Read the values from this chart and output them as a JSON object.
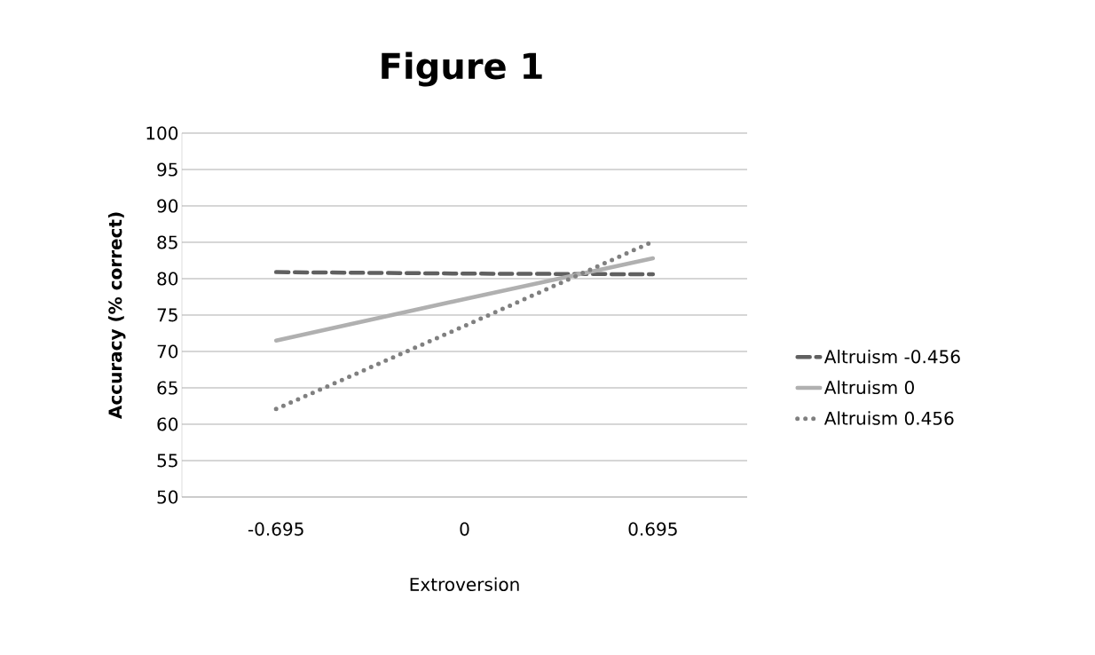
{
  "chart_data": {
    "type": "line",
    "title": "Figure 1",
    "xlabel": "Extroversion",
    "ylabel": "Accuracy (% correct)",
    "categories": [
      "-0.695",
      "0",
      "0.695"
    ],
    "series": [
      {
        "name": "Altruism -0.456",
        "color": "#606060",
        "line_style": "dashed",
        "values": [
          80.9,
          80.7,
          80.6
        ]
      },
      {
        "name": "Altruism 0",
        "color": "#b0b0b0",
        "line_style": "solid",
        "values": [
          71.5,
          77.2,
          82.8
        ]
      },
      {
        "name": "Altruism 0.456",
        "color": "#808080",
        "line_style": "dotted",
        "values": [
          62.1,
          73.5,
          85.1
        ]
      }
    ],
    "ylim": [
      50,
      100
    ],
    "yticks": [
      50,
      55,
      60,
      65,
      70,
      75,
      80,
      85,
      90,
      95,
      100
    ],
    "grid": "y",
    "legend": "right",
    "marker": "none"
  }
}
